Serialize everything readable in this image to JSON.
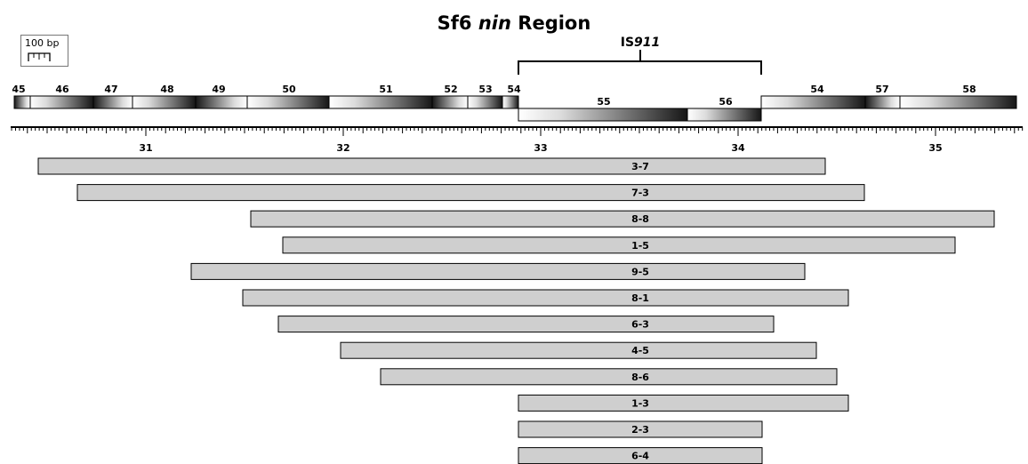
{
  "title": {
    "prefix": "Sf6 ",
    "italic": "nin",
    "suffix": " Region"
  },
  "scale_bar": {
    "label": "100 bp"
  },
  "insertion": {
    "prefix": "IS",
    "italic": "911"
  },
  "axis": {
    "ticks": [
      "31",
      "32",
      "33",
      "34",
      "35"
    ]
  },
  "genes_top_row": [
    "45",
    "46",
    "47",
    "48",
    "49",
    "50",
    "51",
    "52",
    "53",
    "54",
    "54",
    "57",
    "58"
  ],
  "genes_insert_row": [
    "55",
    "56"
  ],
  "clones": [
    "3-7",
    "7-3",
    "8-8",
    "1-5",
    "9-5",
    "8-1",
    "6-3",
    "4-5",
    "8-6",
    "1-3",
    "2-3",
    "6-4"
  ],
  "colors": {
    "clone_fill": "#cfcfcf",
    "gene_dark": "#1a1a1a",
    "gene_light": "#f7f7f7",
    "stroke": "#000000"
  }
}
